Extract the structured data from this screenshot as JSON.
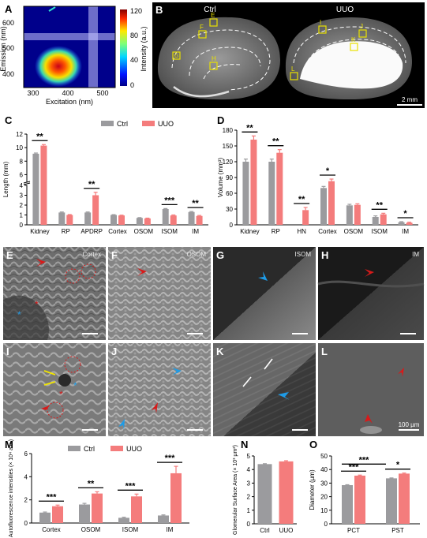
{
  "panel_letters": [
    "A",
    "B",
    "C",
    "D",
    "E",
    "F",
    "G",
    "H",
    "I",
    "J",
    "K",
    "L",
    "M",
    "N",
    "O"
  ],
  "colors": {
    "ctrl": "#9b9b9e",
    "uuo": "#f47c7c",
    "sig": "#000000",
    "yellow": "#e9e100",
    "red_arrow": "#d81a1a",
    "blue_arrow": "#1e9be6"
  },
  "panelA": {
    "xlabel": "Excitation (nm)",
    "ylabel": "Emission (nm)",
    "xticks": [
      "300",
      "400",
      "500"
    ],
    "yticks": [
      "400",
      "500",
      "600"
    ],
    "colorbar_label": "Intensity (a.u.)",
    "colorbar_ticks": [
      "0",
      "40",
      "80",
      "120"
    ]
  },
  "panelB": {
    "label_ctrl": "Ctrl",
    "label_uuo": "UUO",
    "ctrl_regions": [
      "E",
      "F",
      "G",
      "H"
    ],
    "uuo_regions": [
      "I",
      "J",
      "K",
      "L"
    ],
    "scale_bar": "2 mm"
  },
  "legend": {
    "ctrl": "Ctrl",
    "uuo": "UUO"
  },
  "micro_labels": {
    "E": "Cortex",
    "F": "OSOM",
    "G": "ISOM",
    "H": "IM",
    "L_scale": "100 µm"
  },
  "chart_data": [
    {
      "id": "C",
      "type": "bar",
      "ylabel": "Length (mm)",
      "categories": [
        "Kidney",
        "RP",
        "APDRP",
        "Cortex",
        "OSOM",
        "ISOM",
        "IM"
      ],
      "series": [
        {
          "name": "Ctrl",
          "values": [
            9.1,
            1.25,
            1.25,
            1.0,
            0.7,
            1.6,
            1.3
          ]
        },
        {
          "name": "UUO",
          "values": [
            10.3,
            1.0,
            3.0,
            0.95,
            0.65,
            0.95,
            0.9
          ]
        }
      ],
      "errors": [
        [
          0.1,
          0.05,
          0.05,
          0.03,
          0.03,
          0.05,
          0.05
        ],
        [
          0.15,
          0.04,
          0.3,
          0.03,
          0.03,
          0.05,
          0.05
        ]
      ],
      "yticks": [
        "0",
        "1",
        "2",
        "3",
        "4",
        "6",
        "8",
        "10",
        "12"
      ],
      "ylim": [
        0,
        12
      ],
      "axis_break": [
        4,
        5
      ],
      "significance": [
        "**",
        "",
        "**",
        "",
        "",
        "***",
        "**"
      ]
    },
    {
      "id": "D",
      "type": "bar",
      "ylabel": "Volume (mm³)",
      "categories": [
        "Kidney",
        "RP",
        "HN",
        "Cortex",
        "OSOM",
        "ISOM",
        "IM"
      ],
      "series": [
        {
          "name": "Ctrl",
          "values": [
            120,
            120,
            0,
            70,
            37,
            15,
            5
          ]
        },
        {
          "name": "UUO",
          "values": [
            162,
            137,
            28,
            83,
            38,
            20,
            4
          ]
        }
      ],
      "errors": [
        [
          5,
          5,
          0,
          3,
          2,
          2,
          1
        ],
        [
          7,
          6,
          5,
          4,
          2,
          2,
          1
        ]
      ],
      "yticks": [
        "0",
        "30",
        "60",
        "90",
        "120",
        "150",
        "180"
      ],
      "ylim": [
        0,
        180
      ],
      "significance": [
        "**",
        "**",
        "**",
        "*",
        "",
        "**",
        "*"
      ]
    },
    {
      "id": "M",
      "type": "bar",
      "ylabel": "Autofluorescence intensities (× 10⁴ a.u.)",
      "categories": [
        "Cortex",
        "OSOM",
        "ISOM",
        "IM"
      ],
      "series": [
        {
          "name": "Ctrl",
          "values": [
            0.9,
            1.6,
            0.45,
            0.65
          ]
        },
        {
          "name": "UUO",
          "values": [
            1.45,
            2.55,
            2.3,
            4.3
          ]
        }
      ],
      "errors": [
        [
          0.05,
          0.1,
          0.05,
          0.05
        ],
        [
          0.1,
          0.15,
          0.2,
          0.6
        ]
      ],
      "yticks": [
        "0",
        "2",
        "4",
        "6"
      ],
      "ylim": [
        0,
        6
      ],
      "significance": [
        "***",
        "**",
        "***",
        "***"
      ]
    },
    {
      "id": "N",
      "type": "bar",
      "ylabel": "Glomerular Surface Area (× 10³ µm²)",
      "categories": [
        "Ctrl",
        "UUO"
      ],
      "values": [
        4.4,
        4.6
      ],
      "errors": [
        0.03,
        0.05
      ],
      "yticks": [
        "0",
        "1",
        "2",
        "3",
        "4",
        "5"
      ],
      "ylim": [
        0,
        5
      ]
    },
    {
      "id": "O",
      "type": "bar",
      "ylabel": "Diameter (µm)",
      "categories": [
        "PCT",
        "PST"
      ],
      "series": [
        {
          "name": "Ctrl",
          "values": [
            28.5,
            33.5
          ]
        },
        {
          "name": "UUO",
          "values": [
            35.5,
            37
          ]
        }
      ],
      "errors": [
        [
          0.3,
          0.3
        ],
        [
          0.4,
          0.4
        ]
      ],
      "yticks": [
        "0",
        "10",
        "20",
        "30",
        "40",
        "50"
      ],
      "ylim": [
        0,
        50
      ],
      "significance_within": [
        "***",
        "*"
      ],
      "significance_across": "***"
    }
  ]
}
